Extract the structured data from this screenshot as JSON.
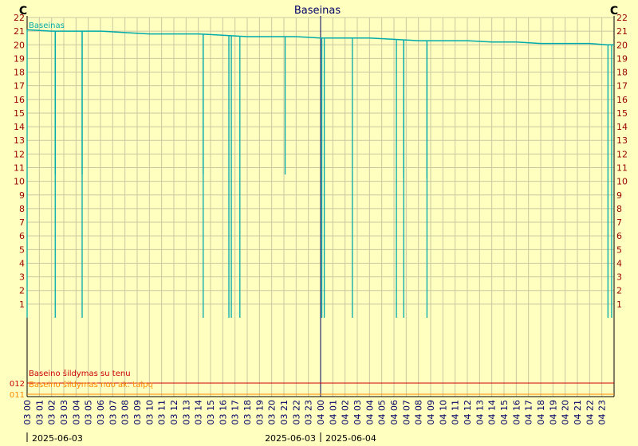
{
  "chart_data": {
    "type": "line",
    "title": "Baseinas",
    "unit_left": "C",
    "unit_right": "C",
    "ylim": [
      0,
      22
    ],
    "yticks": [
      1,
      2,
      3,
      4,
      5,
      6,
      7,
      8,
      9,
      10,
      11,
      12,
      13,
      14,
      15,
      16,
      17,
      18,
      19,
      20,
      21,
      22
    ],
    "x_tick_labels": [
      "03 00",
      "03 01",
      "03 02",
      "03 03",
      "03 04",
      "03 05",
      "03 06",
      "03 07",
      "03 08",
      "03 09",
      "03 10",
      "03 11",
      "03 12",
      "03 13",
      "03 14",
      "03 15",
      "03 16",
      "03 17",
      "03 18",
      "03 19",
      "03 20",
      "03 21",
      "03 22",
      "03 23",
      "04 00",
      "04 01",
      "04 02",
      "04 03",
      "04 04",
      "04 05",
      "04 06",
      "04 07",
      "04 08",
      "04 09",
      "04 10",
      "04 11",
      "04 12",
      "04 13",
      "04 14",
      "04 15",
      "04 16",
      "04 17",
      "04 18",
      "04 19",
      "04 20",
      "04 21",
      "04 22",
      "04 23"
    ],
    "x_range_hours": [
      0,
      48
    ],
    "series": [
      {
        "name": "Baseinas",
        "color": "#00aaaa",
        "points": [
          [
            0,
            21.1
          ],
          [
            2,
            21.0
          ],
          [
            4,
            21.0
          ],
          [
            6,
            21.0
          ],
          [
            8,
            20.9
          ],
          [
            10,
            20.8
          ],
          [
            12,
            20.8
          ],
          [
            14,
            20.8
          ],
          [
            16,
            20.7
          ],
          [
            18,
            20.6
          ],
          [
            20,
            20.6
          ],
          [
            22,
            20.6
          ],
          [
            24,
            20.5
          ],
          [
            26,
            20.5
          ],
          [
            28,
            20.5
          ],
          [
            30,
            20.4
          ],
          [
            32,
            20.3
          ],
          [
            34,
            20.3
          ],
          [
            36,
            20.3
          ],
          [
            38,
            20.2
          ],
          [
            40,
            20.2
          ],
          [
            42,
            20.1
          ],
          [
            44,
            20.1
          ],
          [
            46,
            20.1
          ],
          [
            47.4,
            20.0
          ],
          [
            48,
            20.0
          ]
        ],
        "drops": [
          {
            "x": 0.0,
            "to": 0
          },
          {
            "x": 2.3,
            "to": 10.5
          },
          {
            "x": 2.3,
            "to": 0
          },
          {
            "x": 4.5,
            "to": 10.5
          },
          {
            "x": 4.5,
            "to": 0
          },
          {
            "x": 14.4,
            "to": 10.5
          },
          {
            "x": 14.4,
            "to": 0
          },
          {
            "x": 16.5,
            "to": 0
          },
          {
            "x": 16.7,
            "to": 0
          },
          {
            "x": 17.4,
            "to": 0
          },
          {
            "x": 21.1,
            "to": 10.5
          },
          {
            "x": 24.1,
            "to": 0
          },
          {
            "x": 24.3,
            "to": 0
          },
          {
            "x": 26.6,
            "to": 0
          },
          {
            "x": 30.2,
            "to": 0
          },
          {
            "x": 30.8,
            "to": 10.2
          },
          {
            "x": 30.8,
            "to": 0
          },
          {
            "x": 32.7,
            "to": 10.2
          },
          {
            "x": 32.7,
            "to": 0
          },
          {
            "x": 47.5,
            "to": 0
          },
          {
            "x": 47.8,
            "to": 0
          }
        ]
      }
    ],
    "states": [
      {
        "name": "Baseino šildymas su tenu",
        "axis_label": "012",
        "color": "#cc0000",
        "value": 0
      },
      {
        "name": "Baseino šildymas nuo ak. talpų",
        "axis_label": "011",
        "color": "#ff8800",
        "value": 0
      }
    ],
    "date_labels": [
      "2025-06-03",
      "2025-06-03",
      "2025-06-04"
    ],
    "grid": true,
    "legend": "top-left"
  }
}
